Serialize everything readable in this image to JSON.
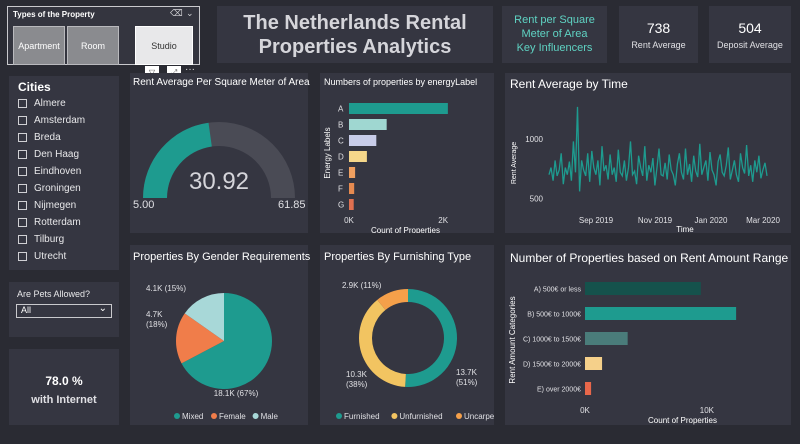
{
  "property_type_slicer": {
    "title": "Types of the Property",
    "options": [
      "Apartment",
      "Room",
      "Studio"
    ],
    "selected": "Studio"
  },
  "header": {
    "title_line1": "The Netherlands Rental",
    "title_line2": "Properties Analytics"
  },
  "key_influencers": {
    "line1": "Rent per Square",
    "line2": "Meter of Area",
    "line3": "Key Influencers"
  },
  "kpis": {
    "rent_avg_value": "738",
    "rent_avg_label": "Rent Average",
    "deposit_avg_value": "504",
    "deposit_avg_label": "Deposit Average"
  },
  "cities": {
    "title": "Cities",
    "items": [
      "Almere",
      "Amsterdam",
      "Breda",
      "Den Haag",
      "Eindhoven",
      "Groningen",
      "Nijmegen",
      "Rotterdam",
      "Tilburg",
      "Utrecht"
    ]
  },
  "pets": {
    "label": "Are Pets Allowed?",
    "selected": "All"
  },
  "internet": {
    "value": "78.0 %",
    "label": "with Internet"
  },
  "colors": {
    "teal": "#1e9b8f",
    "background": "#2a2b33",
    "panel": "#353641"
  },
  "chart_data": [
    {
      "type": "gauge",
      "title": "Rent Average Per Square Meter of Area",
      "value": 30.92,
      "value_label": "30.92",
      "min": 5.0,
      "min_label": "5.00",
      "max": 61.85,
      "max_label": "61.85"
    },
    {
      "type": "bar",
      "orientation": "horizontal",
      "title": "Numbers of properties by energyLabel",
      "categories": [
        "A",
        "B",
        "C",
        "D",
        "E",
        "F",
        "G"
      ],
      "values": [
        2100,
        800,
        580,
        380,
        130,
        110,
        100
      ],
      "colors": [
        "#1e9b8f",
        "#9fd7d1",
        "#c8cce8",
        "#f5d78a",
        "#f0a060",
        "#e68a50",
        "#e07050"
      ],
      "xlabel": "Count of Properties",
      "ylabel": "Energy Labels",
      "xlim": [
        0,
        2400
      ],
      "xticks": [
        "0K",
        "2K"
      ]
    },
    {
      "type": "line",
      "title": "Rent Average by Time",
      "xlabel": "Time",
      "ylabel": "Rent Average",
      "x_ticks": [
        "Sep 2019",
        "Nov 2019",
        "Jan 2020",
        "Mar 2020"
      ],
      "y_ticks": [
        "1000",
        "500"
      ],
      "x_range": [
        "2019-07-20",
        "2020-03-25"
      ],
      "ylim": [
        420,
        1320
      ],
      "series": [
        {
          "values": [
            700,
            760,
            650,
            820,
            690,
            740,
            880,
            620,
            760,
            700,
            810,
            650,
            980,
            720,
            1270,
            560,
            820,
            740,
            690,
            880,
            640,
            900,
            760,
            700,
            820,
            610,
            940,
            730,
            780,
            660,
            870,
            700,
            760,
            640,
            910,
            720,
            690,
            820,
            650,
            760,
            980,
            700,
            730,
            620,
            860,
            760,
            690,
            940,
            650,
            780,
            720,
            840,
            610,
            760,
            920,
            700,
            690,
            800,
            660,
            870,
            740,
            700,
            610,
            790,
            880,
            720,
            660,
            920,
            700,
            790,
            640,
            860,
            730,
            680,
            960,
            700,
            760,
            820,
            650,
            890,
            740,
            700,
            610,
            810,
            870,
            720,
            690,
            780,
            930,
            660,
            740,
            820,
            700,
            640,
            880,
            760,
            710,
            950,
            690,
            780,
            640,
            820,
            720,
            860,
            670,
            740,
            800,
            690
          ]
        }
      ]
    },
    {
      "type": "pie",
      "title": "Properties By Gender Requirements",
      "categories": [
        "Mixed",
        "Female",
        "Male"
      ],
      "values": [
        18100,
        4700,
        4100
      ],
      "data_labels": [
        "18.1K (67%)",
        "4.7K (18%)",
        "4.1K (15%)"
      ],
      "colors": [
        "#1e9b8f",
        "#f07d4a",
        "#a8d8d8"
      ]
    },
    {
      "type": "pie",
      "donut": true,
      "title": "Properties By Furnishing Type",
      "categories": [
        "Furnished",
        "Unfurnished",
        "Uncarpeted"
      ],
      "values": [
        13700,
        10300,
        2900
      ],
      "data_labels": [
        "13.7K (51%)",
        "10.3K (38%)",
        "2.9K (11%)"
      ],
      "colors": [
        "#1e9b8f",
        "#f2c461",
        "#f5a04a"
      ]
    },
    {
      "type": "bar",
      "orientation": "horizontal",
      "title": "Number of Properties based on Rent Amount Range",
      "categories": [
        "A) 500€ or less",
        "B) 500€ to 1000€",
        "C) 1000€ to 1500€",
        "D) 1500€ to 2000€",
        "E) over 2000€"
      ],
      "values": [
        9500,
        12400,
        3500,
        1400,
        500
      ],
      "colors": [
        "#15524c",
        "#1e9b8f",
        "#4a7c7a",
        "#f5d08a",
        "#e8674a"
      ],
      "xlabel": "Count of Properties",
      "ylabel": "Rent Amount Categories",
      "xlim": [
        0,
        16000
      ],
      "xticks": [
        "0K",
        "10K"
      ]
    }
  ]
}
